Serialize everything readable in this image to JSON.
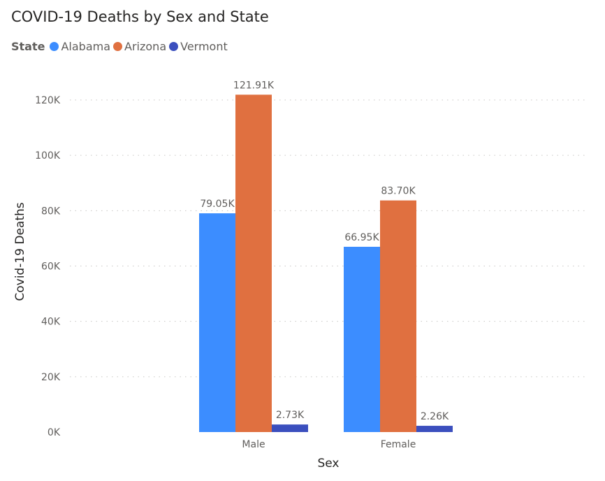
{
  "chart_data": {
    "type": "bar",
    "title": "COVID-19 Deaths by Sex and State",
    "legend_title": "State",
    "legend_position": "top-left",
    "xlabel": "Sex",
    "ylabel": "Covid-19 Deaths",
    "categories": [
      "Male",
      "Female"
    ],
    "series": [
      {
        "name": "Alabama",
        "color": "#3c8dff",
        "values": [
          79050,
          66950
        ],
        "labels": [
          "79.05K",
          "66.95K"
        ]
      },
      {
        "name": "Arizona",
        "color": "#e07040",
        "values": [
          121910,
          83700
        ],
        "labels": [
          "121.91K",
          "83.70K"
        ]
      },
      {
        "name": "Vermont",
        "color": "#3b4fbe",
        "values": [
          2730,
          2260
        ],
        "labels": [
          "2.73K",
          "2.26K"
        ]
      }
    ],
    "ylim": [
      0,
      120000
    ],
    "yticks": [
      0,
      20000,
      40000,
      60000,
      80000,
      100000,
      120000
    ],
    "ytick_labels": [
      "0K",
      "20K",
      "40K",
      "60K",
      "80K",
      "100K",
      "120K"
    ],
    "grid": true
  }
}
